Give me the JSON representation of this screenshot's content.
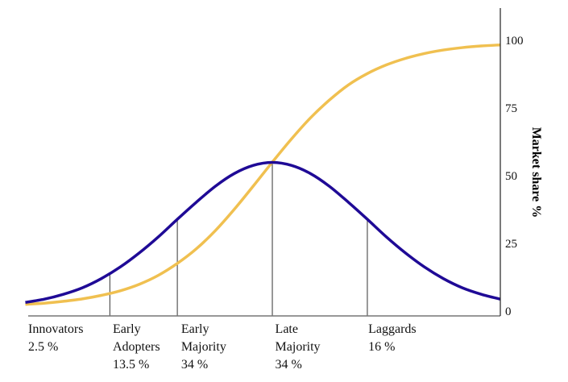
{
  "chart_data": {
    "type": "line",
    "title": "",
    "xlabel": "",
    "ylabel": "Market share %",
    "ylim": [
      0,
      100
    ],
    "yticks": [
      "0",
      "25",
      "50",
      "75",
      "100"
    ],
    "y_axis_side": "right",
    "grid": false,
    "x": [
      -2.6,
      -2.4,
      -2.2,
      -2.0,
      -1.8,
      -1.6,
      -1.4,
      -1.2,
      -1.0,
      -0.8,
      -0.6,
      -0.4,
      -0.2,
      0,
      0.2,
      0.4,
      0.6,
      0.8,
      1.0,
      1.2,
      1.4,
      1.6,
      1.8,
      2.0,
      2.2,
      2.4
    ],
    "xlim": [
      -2.57,
      2.4
    ],
    "series": [
      {
        "color": "#1f0a96",
        "values": [
          3.8,
          5.0,
          6.8,
          9.2,
          12.6,
          16.9,
          22.1,
          28.0,
          34.5,
          40.8,
          46.7,
          51.4,
          54.4,
          55.5,
          54.4,
          51.4,
          46.7,
          40.8,
          34.5,
          28.0,
          22.1,
          16.9,
          12.6,
          9.2,
          6.8,
          5.0
        ]
      },
      {
        "color": "#f0c050",
        "values": [
          3.1,
          3.5,
          4.2,
          5.1,
          6.4,
          8.1,
          10.5,
          13.8,
          18.2,
          23.6,
          30.3,
          38.2,
          46.8,
          55.6,
          64.1,
          71.9,
          78.5,
          84.1,
          88.3,
          91.5,
          93.9,
          95.7,
          97.0,
          97.9,
          98.5,
          98.9
        ]
      }
    ],
    "dividers": [
      -1.71,
      -1.0,
      0,
      1.0
    ],
    "segments": [
      {
        "name": "Innovators",
        "lines": [
          "Innovators",
          "2.5 %"
        ],
        "x": -2.57
      },
      {
        "name": "Early Adopters",
        "lines": [
          "Early",
          "Adopters",
          "13.5 %"
        ],
        "x": -1.68
      },
      {
        "name": "Early Majority",
        "lines": [
          "Early",
          "Majority",
          "34 %"
        ],
        "x": -0.96
      },
      {
        "name": "Late Majority",
        "lines": [
          "Late",
          "Majority",
          "34 %"
        ],
        "x": 0.03
      },
      {
        "name": "Laggards",
        "lines": [
          "Laggards",
          "16 %"
        ],
        "x": 1.01
      }
    ]
  }
}
